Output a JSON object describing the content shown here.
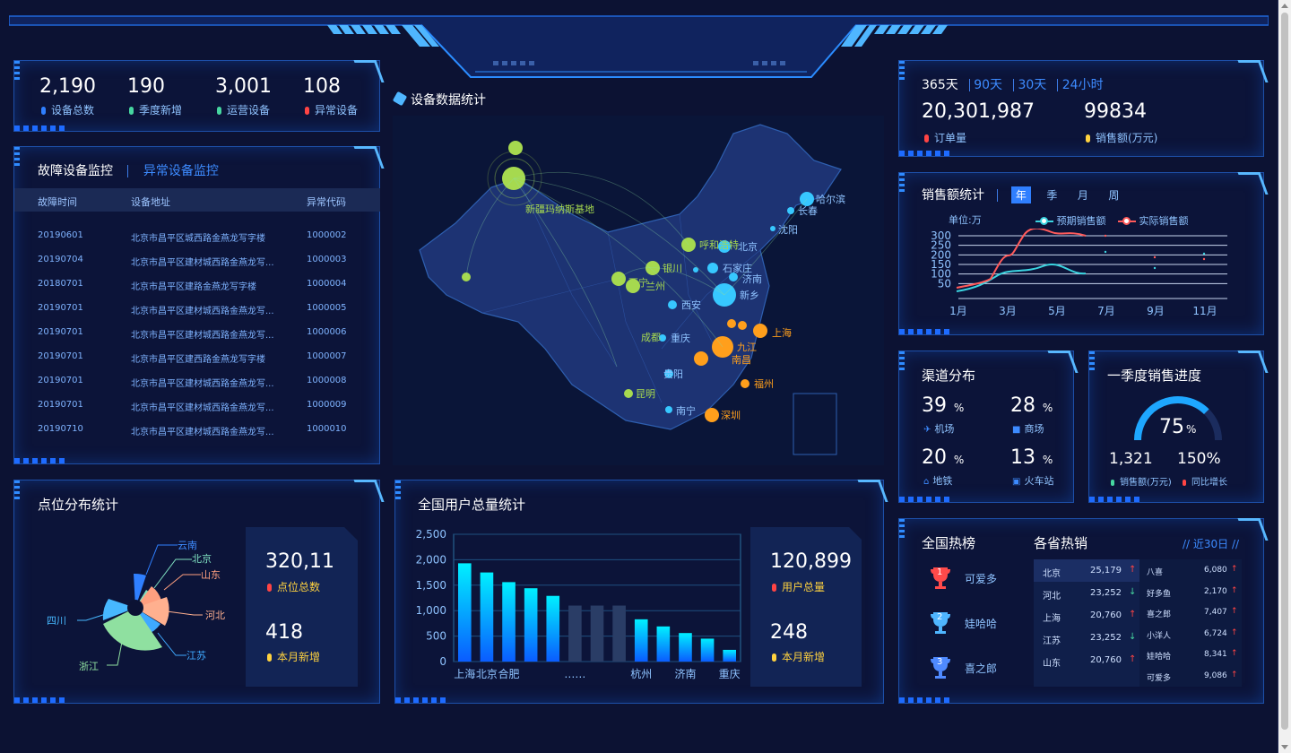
{
  "top_stats": [
    {
      "value": "2,190",
      "label": "设备总数",
      "color": "#2f7fff"
    },
    {
      "value": "190",
      "label": "季度新增",
      "color": "#46d6a0"
    },
    {
      "value": "3,001",
      "label": "运营设备",
      "color": "#46d6a0"
    },
    {
      "value": "108",
      "label": "异常设备",
      "color": "#ff4444"
    }
  ],
  "monitor": {
    "tab_active": "故障设备监控",
    "tab_other": "异常设备监控",
    "columns": [
      "故障时间",
      "设备地址",
      "异常代码"
    ],
    "rows": [
      [
        "20190601",
        "北京市昌平区城西路金燕龙写字楼",
        "1000002"
      ],
      [
        "20190704",
        "北京市昌平区建材城西路金燕龙写...",
        "1000003"
      ],
      [
        "20180701",
        "北京市昌平区建路金燕龙写字楼",
        "1000004"
      ],
      [
        "20190701",
        "北京市昌平区建材城西路金燕龙写...",
        "1000005"
      ],
      [
        "20190701",
        "北京市昌平区建材城西路金燕龙写...",
        "1000006"
      ],
      [
        "20190701",
        "北京市昌平区建西路金燕龙写字楼",
        "1000007"
      ],
      [
        "20190701",
        "北京市昌平区建材城西路金燕龙写...",
        "1000008"
      ],
      [
        "20190701",
        "北京市昌平区建材城西路金燕龙写...",
        "1000009"
      ],
      [
        "20190710",
        "北京市昌平区建材城西路金燕龙写...",
        "1000010"
      ]
    ]
  },
  "point_dist": {
    "title": "点位分布统计",
    "labels": [
      "云南",
      "北京",
      "山东",
      "河北",
      "江苏",
      "浙江",
      "四川"
    ],
    "total_value": "320,11",
    "total_label": "点位总数",
    "new_value": "418",
    "new_label": "本月新增"
  },
  "map": {
    "title": "设备数据统计",
    "cities": [
      "新疆玛纳斯基地",
      "哈尔滨",
      "长春",
      "沈阳",
      "呼和浩特",
      "北京",
      "银川",
      "石家庄",
      "济南",
      "西宁",
      "兰州",
      "新乡",
      "西安",
      "成都",
      "重庆",
      "上海",
      "九江",
      "南昌",
      "贵阳",
      "福州",
      "昆明",
      "南宁",
      "深圳"
    ]
  },
  "users": {
    "title": "全国用户总量统计",
    "total_value": "120,899",
    "total_label": "用户总量",
    "new_value": "248",
    "new_label": "本月新增"
  },
  "chart_data": {
    "type": "bar",
    "categories": [
      "上海",
      "北京",
      "合肥",
      "",
      "",
      "……",
      "",
      "",
      "杭州",
      "",
      "济南",
      "",
      "重庆"
    ],
    "values": [
      1930,
      1750,
      1560,
      1440,
      1290,
      1100,
      1100,
      1100,
      830,
      690,
      560,
      450,
      230
    ],
    "placeholder_bars": [
      5,
      6,
      7
    ],
    "ylim": [
      0,
      2500
    ],
    "yticks": [
      "0",
      "500",
      "1,000",
      "1,500",
      "2,000",
      "2,500"
    ]
  },
  "orders": {
    "tabs": [
      "365天",
      "90天",
      "30天",
      "24小时"
    ],
    "order_value": "20,301,987",
    "order_label": "订单量",
    "sales_value": "99834",
    "sales_label": "销售额(万元)"
  },
  "sales": {
    "title": "销售额统计",
    "tabs": [
      "年",
      "季",
      "月",
      "周"
    ],
    "unit": "单位:万",
    "legend": [
      "预期销售额",
      "实际销售额"
    ],
    "yticks": [
      "50",
      "100",
      "150",
      "200",
      "250",
      "300"
    ],
    "xticks": [
      "1月",
      "3月",
      "5月",
      "7月",
      "9月",
      "11月"
    ]
  },
  "channel": {
    "title": "渠道分布",
    "items": [
      {
        "value": "39",
        "unit": "%",
        "label": "机场"
      },
      {
        "value": "28",
        "unit": "%",
        "label": "商场"
      },
      {
        "value": "20",
        "unit": "%",
        "label": "地铁"
      },
      {
        "value": "13",
        "unit": "%",
        "label": "火车站"
      }
    ]
  },
  "quarter": {
    "title": "一季度销售进度",
    "percent": "75",
    "percent_unit": "%",
    "progress": 0.75,
    "sales_value": "1,321",
    "sales_label": "销售额(万元)",
    "growth_value": "150%",
    "growth_label": "同比增长"
  },
  "hot": {
    "title": "全国热榜",
    "ranks": [
      {
        "n": "1",
        "name": "可爱多"
      },
      {
        "n": "2",
        "name": "娃哈哈"
      },
      {
        "n": "3",
        "name": "喜之郎"
      }
    ],
    "province_title": "各省热销",
    "period": "// 近30日 //",
    "provinces": [
      {
        "name": "北京",
        "value": "25,179",
        "trend": "up"
      },
      {
        "name": "河北",
        "value": "23,252",
        "trend": "down"
      },
      {
        "name": "上海",
        "value": "20,760",
        "trend": "up"
      },
      {
        "name": "江苏",
        "value": "23,252",
        "trend": "down"
      },
      {
        "name": "山东",
        "value": "20,760",
        "trend": "up"
      }
    ],
    "products": [
      {
        "name": "八喜",
        "value": "6,080"
      },
      {
        "name": "好多鱼",
        "value": "2,170"
      },
      {
        "name": "喜之郎",
        "value": "7,407"
      },
      {
        "name": "小洋人",
        "value": "6,724"
      },
      {
        "name": "娃哈哈",
        "value": "8,341"
      },
      {
        "name": "可爱多",
        "value": "9,086"
      }
    ]
  },
  "colors": {
    "accent": "#2f7fff",
    "cyan": "#00e5ff",
    "orange": "#ff9f1c",
    "green": "#a6d94f",
    "red": "#ff4444"
  }
}
